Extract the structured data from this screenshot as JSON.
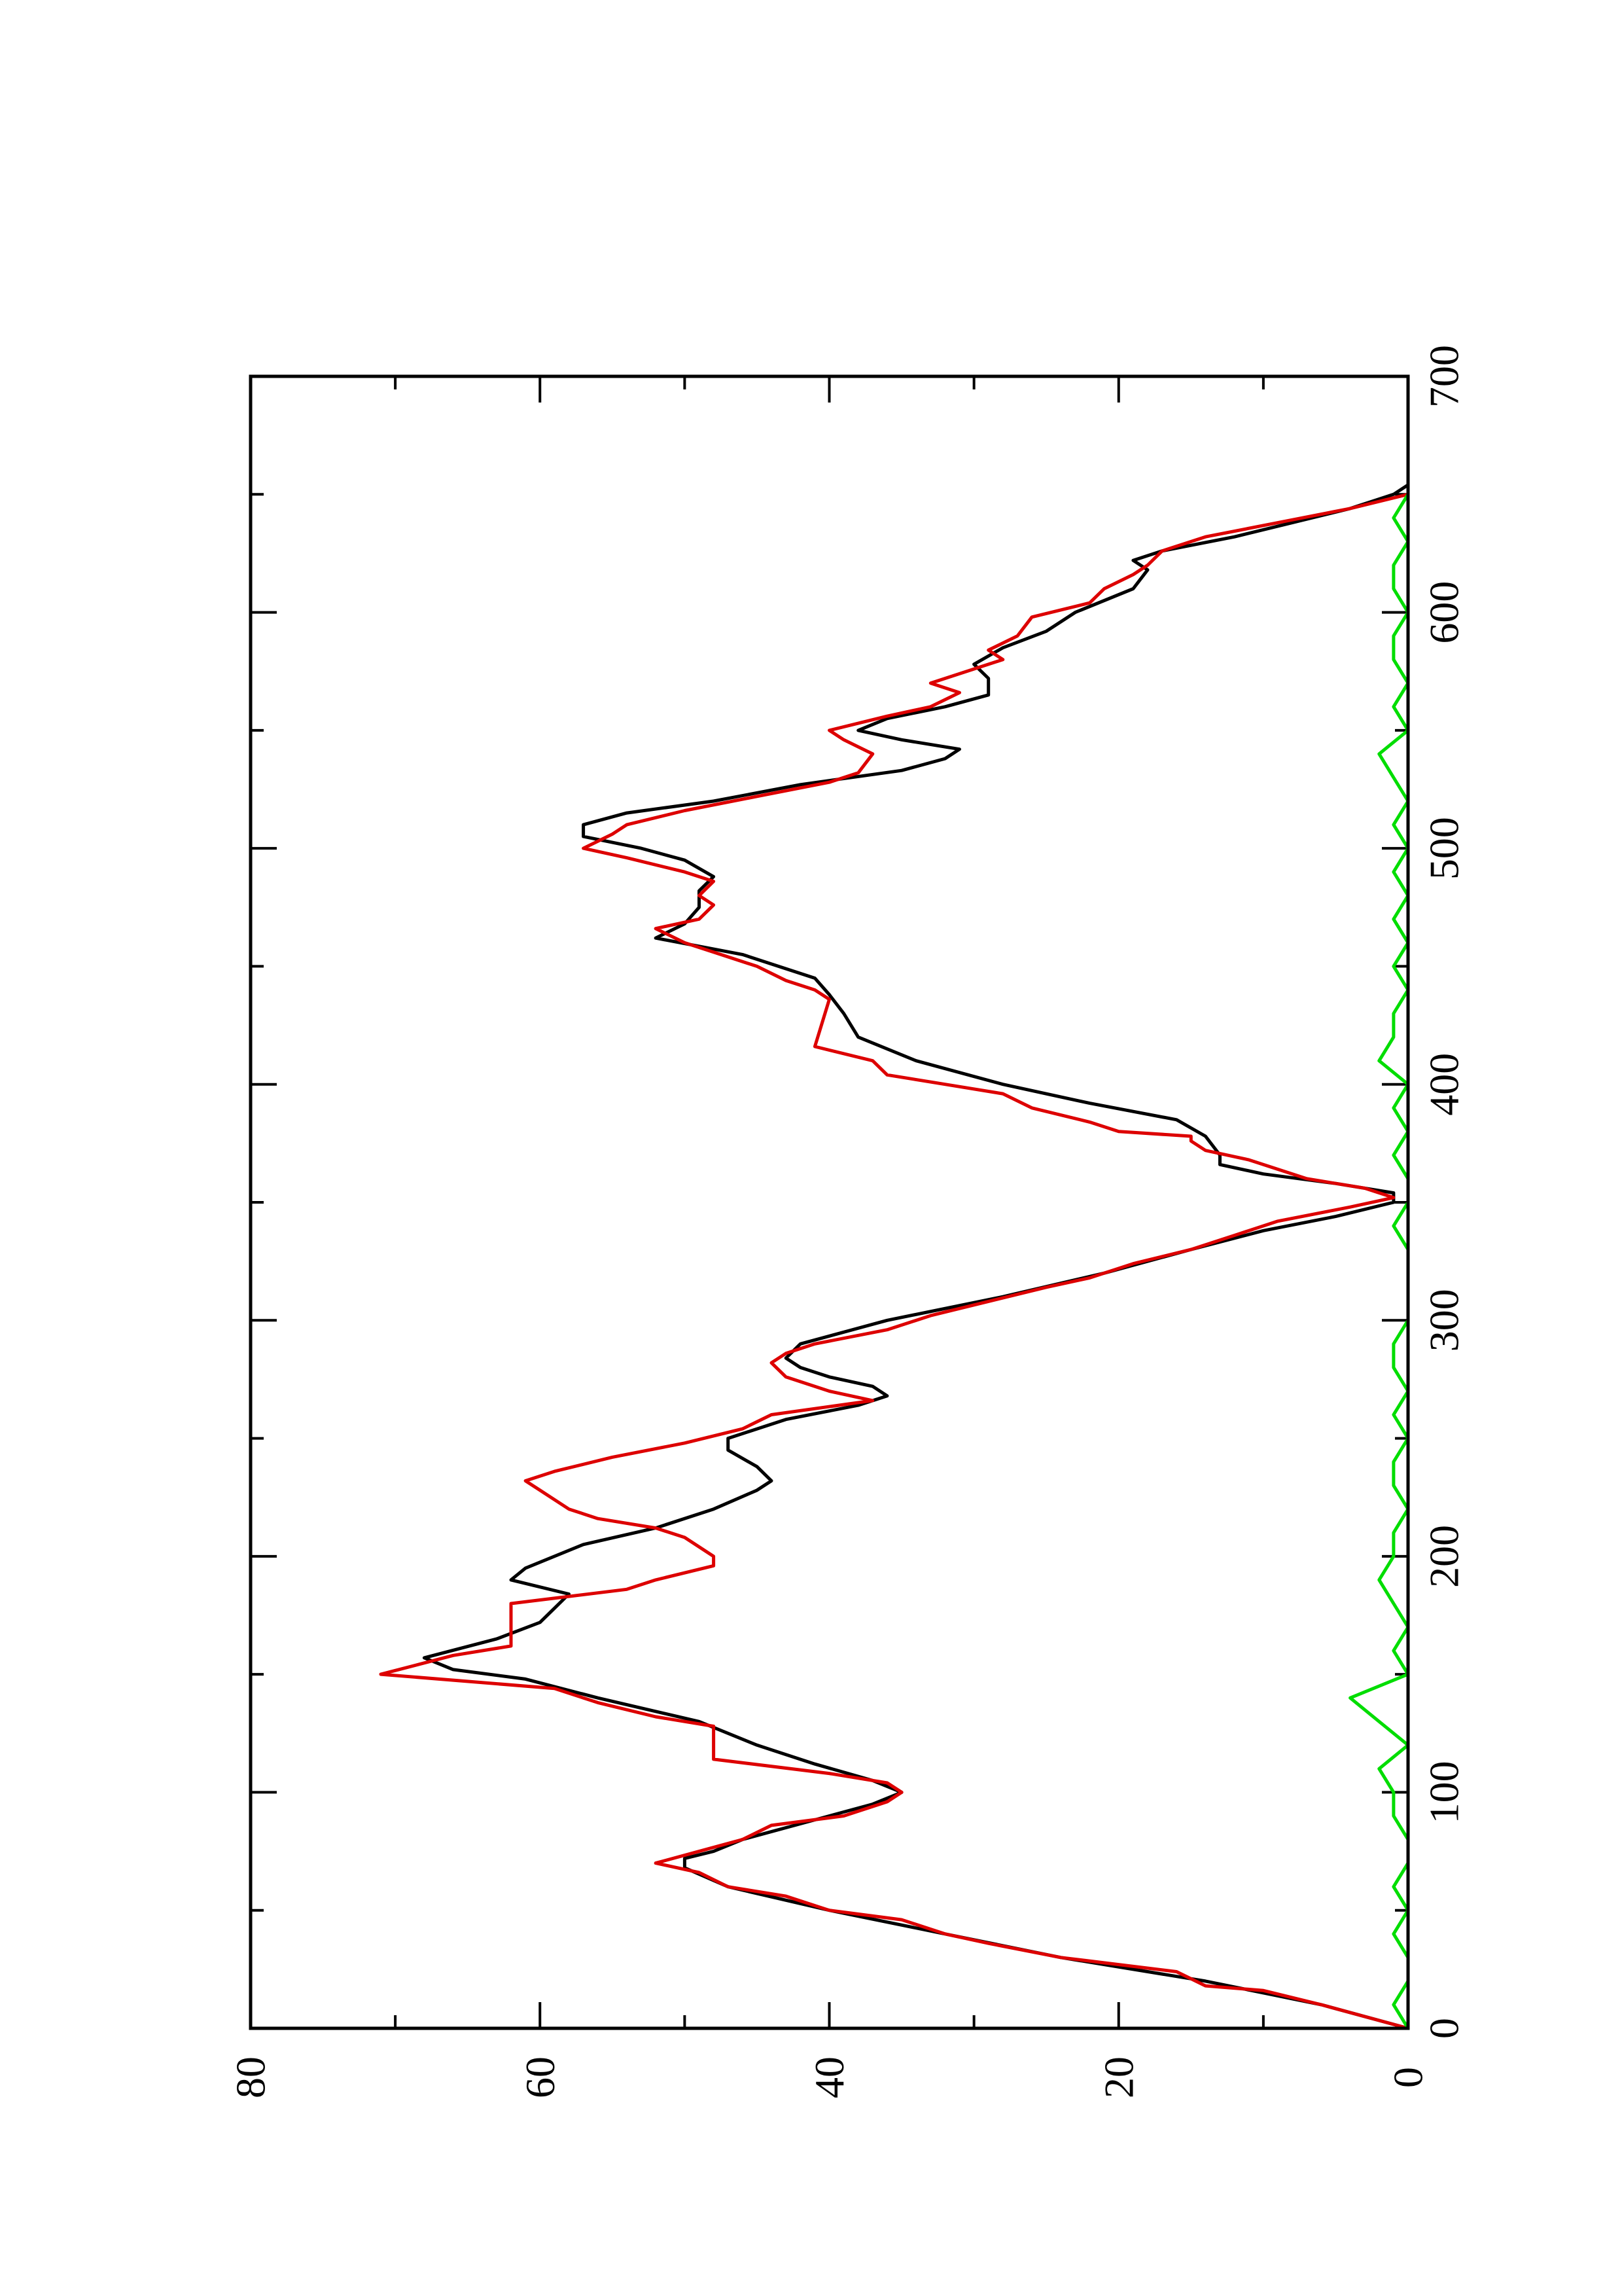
{
  "chart_data": {
    "type": "line",
    "orientation": "rotated-90-ccw",
    "title": "",
    "xlabel": "",
    "ylabel": "",
    "xlim": [
      0,
      700
    ],
    "ylim": [
      0,
      80
    ],
    "x_ticks": [
      0,
      100,
      200,
      300,
      400,
      500,
      600,
      700
    ],
    "x_minor_ticks": [
      50,
      150,
      250,
      350,
      450,
      550,
      650
    ],
    "y_ticks": [
      0,
      20,
      40,
      60,
      80
    ],
    "y_minor_ticks": [
      10,
      30,
      50,
      70
    ],
    "x_tick_labels": [
      "0",
      "100",
      "200",
      "300",
      "400",
      "500",
      "600",
      "700"
    ],
    "y_tick_labels": [
      "0",
      "20",
      "40",
      "60",
      "80"
    ],
    "grid": false,
    "legend": "none",
    "series": [
      {
        "color": "#000000",
        "points": [
          [
            0,
            0
          ],
          [
            10,
            6
          ],
          [
            20,
            14
          ],
          [
            30,
            24
          ],
          [
            40,
            32
          ],
          [
            50,
            40
          ],
          [
            60,
            47
          ],
          [
            68,
            50
          ],
          [
            72,
            50
          ],
          [
            75,
            48
          ],
          [
            80,
            46
          ],
          [
            85,
            43
          ],
          [
            90,
            40
          ],
          [
            95,
            37
          ],
          [
            100,
            35
          ],
          [
            105,
            37
          ],
          [
            112,
            41
          ],
          [
            120,
            45
          ],
          [
            130,
            49
          ],
          [
            140,
            56
          ],
          [
            148,
            61
          ],
          [
            152,
            66
          ],
          [
            157,
            68
          ],
          [
            165,
            63
          ],
          [
            172,
            60
          ],
          [
            178,
            59
          ],
          [
            184,
            58
          ],
          [
            190,
            62
          ],
          [
            195,
            61
          ],
          [
            205,
            57
          ],
          [
            212,
            52
          ],
          [
            220,
            48
          ],
          [
            228,
            45
          ],
          [
            232,
            44
          ],
          [
            238,
            45
          ],
          [
            245,
            47
          ],
          [
            250,
            47
          ],
          [
            258,
            43
          ],
          [
            264,
            38
          ],
          [
            268,
            36
          ],
          [
            272,
            37
          ],
          [
            276,
            40
          ],
          [
            280,
            42
          ],
          [
            284,
            43
          ],
          [
            290,
            42
          ],
          [
            300,
            36
          ],
          [
            310,
            28
          ],
          [
            320,
            21
          ],
          [
            330,
            15
          ],
          [
            338,
            10
          ],
          [
            344,
            5
          ],
          [
            350,
            1
          ],
          [
            354,
            1
          ],
          [
            358,
            5
          ],
          [
            362,
            10
          ],
          [
            366,
            13
          ],
          [
            370,
            13
          ],
          [
            378,
            14
          ],
          [
            385,
            16
          ],
          [
            392,
            22
          ],
          [
            400,
            28
          ],
          [
            410,
            34
          ],
          [
            420,
            38
          ],
          [
            430,
            39
          ],
          [
            438,
            40
          ],
          [
            445,
            41
          ],
          [
            455,
            46
          ],
          [
            462,
            52
          ],
          [
            468,
            50
          ],
          [
            475,
            49
          ],
          [
            482,
            49
          ],
          [
            488,
            48
          ],
          [
            495,
            50
          ],
          [
            500,
            53
          ],
          [
            505,
            57
          ],
          [
            510,
            57
          ],
          [
            515,
            54
          ],
          [
            520,
            48
          ],
          [
            527,
            42
          ],
          [
            533,
            35
          ],
          [
            538,
            32
          ],
          [
            542,
            31
          ],
          [
            546,
            35
          ],
          [
            550,
            38
          ],
          [
            555,
            36
          ],
          [
            560,
            32
          ],
          [
            565,
            29
          ],
          [
            572,
            29
          ],
          [
            578,
            30
          ],
          [
            585,
            28
          ],
          [
            592,
            25
          ],
          [
            600,
            23
          ],
          [
            610,
            19
          ],
          [
            618,
            18
          ],
          [
            622,
            19
          ],
          [
            626,
            17
          ],
          [
            632,
            12
          ],
          [
            638,
            8
          ],
          [
            644,
            4
          ],
          [
            650,
            1
          ],
          [
            654,
            0
          ]
        ]
      },
      {
        "color": "#dd0000",
        "points": [
          [
            0,
            0
          ],
          [
            10,
            6
          ],
          [
            16,
            10
          ],
          [
            18,
            14
          ],
          [
            24,
            16
          ],
          [
            30,
            24
          ],
          [
            36,
            29
          ],
          [
            40,
            32
          ],
          [
            46,
            35
          ],
          [
            50,
            40
          ],
          [
            56,
            43
          ],
          [
            60,
            47
          ],
          [
            66,
            49
          ],
          [
            70,
            52
          ],
          [
            75,
            49
          ],
          [
            80,
            46
          ],
          [
            86,
            44
          ],
          [
            90,
            39
          ],
          [
            96,
            36
          ],
          [
            100,
            35
          ],
          [
            104,
            36
          ],
          [
            108,
            40
          ],
          [
            114,
            48
          ],
          [
            128,
            48
          ],
          [
            132,
            52
          ],
          [
            138,
            56
          ],
          [
            144,
            59
          ],
          [
            150,
            71
          ],
          [
            158,
            66
          ],
          [
            162,
            62
          ],
          [
            180,
            62
          ],
          [
            186,
            54
          ],
          [
            190,
            52
          ],
          [
            196,
            48
          ],
          [
            200,
            48
          ],
          [
            208,
            50
          ],
          [
            212,
            52
          ],
          [
            216,
            56
          ],
          [
            220,
            58
          ],
          [
            228,
            60
          ],
          [
            232,
            61
          ],
          [
            236,
            59
          ],
          [
            242,
            55
          ],
          [
            248,
            50
          ],
          [
            254,
            46
          ],
          [
            260,
            44
          ],
          [
            266,
            37
          ],
          [
            270,
            40
          ],
          [
            276,
            43
          ],
          [
            282,
            44
          ],
          [
            286,
            43
          ],
          [
            290,
            41
          ],
          [
            296,
            36
          ],
          [
            302,
            33
          ],
          [
            308,
            29
          ],
          [
            314,
            25
          ],
          [
            318,
            22
          ],
          [
            324,
            19
          ],
          [
            330,
            15
          ],
          [
            336,
            12
          ],
          [
            342,
            9
          ],
          [
            348,
            4
          ],
          [
            352,
            1
          ],
          [
            356,
            3
          ],
          [
            360,
            7
          ],
          [
            364,
            9
          ],
          [
            368,
            11
          ],
          [
            372,
            14
          ],
          [
            376,
            15
          ],
          [
            378,
            15
          ],
          [
            380,
            20
          ],
          [
            384,
            22
          ],
          [
            390,
            26
          ],
          [
            396,
            28
          ],
          [
            400,
            32
          ],
          [
            404,
            36
          ],
          [
            410,
            37
          ],
          [
            416,
            41
          ],
          [
            436,
            40
          ],
          [
            440,
            41
          ],
          [
            444,
            43
          ],
          [
            450,
            45
          ],
          [
            456,
            48
          ],
          [
            460,
            50
          ],
          [
            466,
            52
          ],
          [
            470,
            49
          ],
          [
            476,
            48
          ],
          [
            480,
            49
          ],
          [
            486,
            48
          ],
          [
            490,
            50
          ],
          [
            496,
            54
          ],
          [
            500,
            57
          ],
          [
            506,
            55
          ],
          [
            510,
            54
          ],
          [
            516,
            50
          ],
          [
            522,
            45
          ],
          [
            528,
            40
          ],
          [
            532,
            38
          ],
          [
            540,
            37
          ],
          [
            546,
            39
          ],
          [
            550,
            40
          ],
          [
            556,
            36
          ],
          [
            560,
            33
          ],
          [
            566,
            31
          ],
          [
            570,
            33
          ],
          [
            576,
            30
          ],
          [
            580,
            28
          ],
          [
            584,
            29
          ],
          [
            590,
            27
          ],
          [
            598,
            26
          ],
          [
            604,
            22
          ],
          [
            610,
            21
          ],
          [
            616,
            19
          ],
          [
            620,
            18
          ],
          [
            626,
            17
          ],
          [
            632,
            14
          ],
          [
            638,
            9
          ],
          [
            644,
            4
          ],
          [
            650,
            0
          ]
        ]
      },
      {
        "color": "#00dd00",
        "points": [
          [
            0,
            0
          ],
          [
            10,
            1
          ],
          [
            20,
            0
          ],
          [
            30,
            0
          ],
          [
            40,
            1
          ],
          [
            50,
            0
          ],
          [
            60,
            1
          ],
          [
            70,
            0
          ],
          [
            80,
            0
          ],
          [
            90,
            1
          ],
          [
            100,
            1
          ],
          [
            110,
            2
          ],
          [
            120,
            0
          ],
          [
            130,
            2
          ],
          [
            140,
            4
          ],
          [
            150,
            0
          ],
          [
            160,
            1
          ],
          [
            170,
            0
          ],
          [
            180,
            1
          ],
          [
            190,
            2
          ],
          [
            200,
            1
          ],
          [
            210,
            1
          ],
          [
            220,
            0
          ],
          [
            230,
            1
          ],
          [
            240,
            1
          ],
          [
            250,
            0
          ],
          [
            260,
            1
          ],
          [
            270,
            0
          ],
          [
            280,
            1
          ],
          [
            290,
            1
          ],
          [
            300,
            0
          ],
          [
            310,
            0
          ],
          [
            320,
            0
          ],
          [
            330,
            0
          ],
          [
            340,
            1
          ],
          [
            350,
            0
          ],
          [
            360,
            0
          ],
          [
            370,
            1
          ],
          [
            380,
            0
          ],
          [
            390,
            1
          ],
          [
            400,
            0
          ],
          [
            410,
            2
          ],
          [
            420,
            1
          ],
          [
            430,
            1
          ],
          [
            440,
            0
          ],
          [
            450,
            1
          ],
          [
            460,
            0
          ],
          [
            470,
            1
          ],
          [
            480,
            0
          ],
          [
            490,
            1
          ],
          [
            500,
            0
          ],
          [
            510,
            1
          ],
          [
            520,
            0
          ],
          [
            530,
            1
          ],
          [
            540,
            2
          ],
          [
            550,
            0
          ],
          [
            560,
            1
          ],
          [
            570,
            0
          ],
          [
            580,
            1
          ],
          [
            590,
            1
          ],
          [
            600,
            0
          ],
          [
            610,
            1
          ],
          [
            620,
            1
          ],
          [
            630,
            0
          ],
          [
            640,
            1
          ],
          [
            650,
            0
          ],
          [
            655,
            0
          ]
        ]
      }
    ]
  }
}
